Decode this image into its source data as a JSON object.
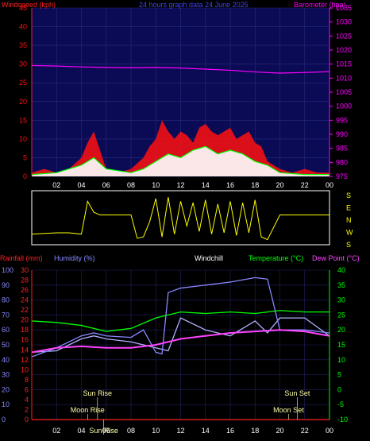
{
  "colors": {
    "background": "#000000",
    "plot_bg": "#0a0a55",
    "wind_gust": "#ff1010",
    "wind_avg": "#ffffff",
    "wind_avg2": "#00ff00",
    "barometer": "#ff00ff",
    "direction": "#ffff00",
    "temperature": "#00ff00",
    "dewpoint": "#ff44ff",
    "humidity": "#8888ff",
    "windchill": "#b0b0ff",
    "rainfall": "#ff2020",
    "title_blue": "#4040ff",
    "axis_white": "#ffffff"
  },
  "chart_data": [
    {
      "type": "line",
      "panel": "wind-barometer",
      "title": "24 hours graph data  24 June 2025",
      "ylabel_left": "Windspeed (kph)",
      "ylabel_right": "Barometer (hpa)",
      "ylim_left": [
        0,
        45
      ],
      "ylim_right": [
        975,
        1035
      ],
      "yticks_left": [
        "0",
        "5",
        "10",
        "15",
        "20",
        "25",
        "30",
        "35",
        "40",
        "45"
      ],
      "yticks_right": [
        "975",
        "980",
        "985",
        "990",
        "995",
        "1000",
        "1005",
        "1010",
        "1015",
        "1020",
        "1025",
        "1030",
        "1035"
      ],
      "xticks": [
        "02",
        "04",
        "06",
        "08",
        "10",
        "12",
        "14",
        "16",
        "18",
        "20",
        "22",
        "00"
      ],
      "xlim": [
        0,
        24
      ],
      "series": [
        {
          "name": "Windspeed",
          "x": [
            0,
            1,
            2,
            3,
            4,
            4.5,
            5,
            5.5,
            6,
            7,
            8,
            9,
            9.5,
            10,
            10.5,
            11,
            11.5,
            12,
            12.5,
            13,
            13.5,
            14,
            14.5,
            15,
            15.5,
            16,
            16.5,
            17,
            17.5,
            18,
            18.5,
            19,
            20,
            21,
            22,
            23,
            24
          ],
          "values": [
            1,
            2,
            1,
            2,
            5,
            9,
            12,
            7,
            2,
            1,
            2,
            5,
            8,
            10,
            15,
            12,
            10,
            12,
            11,
            9,
            13,
            14,
            12,
            11,
            12,
            13,
            10,
            11,
            12,
            9,
            8,
            4,
            2,
            1,
            2,
            1,
            1
          ]
        },
        {
          "name": "Average",
          "x": [
            0,
            2,
            4,
            5,
            6,
            8,
            9,
            10,
            11,
            12,
            13,
            14,
            15,
            16,
            17,
            18,
            19,
            20,
            22,
            24
          ],
          "values": [
            0.5,
            1,
            3,
            5,
            2,
            1,
            2,
            4,
            6,
            5,
            7,
            8,
            6,
            7,
            6,
            4,
            3,
            1,
            0.5,
            0.5
          ]
        },
        {
          "name": "Barometer",
          "x": [
            0,
            2,
            4,
            6,
            8,
            10,
            12,
            14,
            16,
            18,
            20,
            22,
            24
          ],
          "values": [
            1014.5,
            1014.3,
            1014,
            1013.8,
            1013.7,
            1013.8,
            1013.6,
            1013.2,
            1012.8,
            1012.2,
            1011.8,
            1012,
            1012.3
          ]
        }
      ]
    },
    {
      "type": "line",
      "panel": "wind-direction",
      "ylabels": [
        "S",
        "E",
        "N",
        "W",
        "S"
      ],
      "ylim": [
        0,
        360
      ],
      "xlim": [
        0,
        24
      ],
      "series": [
        {
          "name": "Direction",
          "x": [
            0,
            2,
            3,
            4,
            4.5,
            5,
            5.5,
            6,
            8,
            8.5,
            9,
            9.5,
            10,
            10.5,
            11,
            11.5,
            12,
            12.5,
            13,
            13.5,
            14,
            14.5,
            15,
            15.5,
            16,
            16.5,
            17,
            17.5,
            18,
            18.5,
            19,
            20,
            24
          ],
          "values": [
            60,
            70,
            70,
            60,
            300,
            220,
            200,
            200,
            200,
            30,
            40,
            150,
            320,
            40,
            330,
            60,
            300,
            120,
            290,
            80,
            310,
            60,
            280,
            70,
            300,
            50,
            290,
            70,
            310,
            40,
            20,
            200,
            200
          ]
        }
      ]
    },
    {
      "type": "line",
      "panel": "temperature-humidity",
      "labels": [
        "Rainfall (mm)",
        "Humidity (%)",
        "Windchill",
        "Temperature (°C)",
        "Dew Point (°C)"
      ],
      "ylim_humidity": [
        0,
        100
      ],
      "yticks_humidity": [
        "0",
        "10",
        "20",
        "30",
        "40",
        "50",
        "60",
        "70",
        "80",
        "90",
        "100"
      ],
      "ylim_rain": [
        0,
        30
      ],
      "yticks_rain": [
        "0",
        "2",
        "4",
        "6",
        "8",
        "10",
        "12",
        "14",
        "16",
        "18",
        "20",
        "22",
        "24",
        "26",
        "28",
        "30"
      ],
      "ylim_temp": [
        -10,
        40
      ],
      "yticks_temp": [
        "-10",
        "-5",
        "0",
        "5",
        "10",
        "15",
        "20",
        "25",
        "30",
        "35",
        "40"
      ],
      "xticks": [
        "02",
        "04",
        "06",
        "08",
        "10",
        "12",
        "14",
        "16",
        "18",
        "20",
        "22",
        "00"
      ],
      "xlim": [
        0,
        24
      ],
      "annotations": [
        "Sun Rise",
        "Moon Rise",
        "Sun Rise",
        "Sun Set",
        "Moon Set"
      ],
      "series": [
        {
          "name": "Temperature",
          "x": [
            0,
            2,
            4,
            6,
            8,
            10,
            12,
            14,
            16,
            18,
            20,
            22,
            24
          ],
          "values": [
            23,
            22.5,
            21.5,
            19.5,
            20.5,
            24,
            26,
            25.5,
            26,
            25.5,
            26.5,
            26,
            26
          ]
        },
        {
          "name": "Windchill",
          "x": [
            0,
            2,
            4,
            5,
            6,
            7,
            8,
            9,
            10,
            11,
            12,
            14,
            16,
            18,
            19,
            20,
            22,
            24
          ],
          "values": [
            12.5,
            13,
            17,
            18,
            17,
            16.5,
            16,
            15,
            14,
            13,
            24,
            20,
            18,
            23,
            19,
            24,
            24,
            18
          ]
        },
        {
          "name": "Humidity",
          "x": [
            0,
            2,
            4,
            5,
            6,
            8,
            9,
            10,
            10.5,
            11,
            12,
            14,
            16,
            18,
            19,
            20,
            22,
            24
          ],
          "values": [
            42,
            48,
            56,
            58,
            56,
            55,
            60,
            45,
            44,
            85,
            88,
            90,
            92,
            95,
            94,
            60,
            60,
            58
          ]
        },
        {
          "name": "Dew Point",
          "x": [
            0,
            2,
            4,
            6,
            8,
            10,
            12,
            14,
            16,
            18,
            20,
            22,
            24
          ],
          "values": [
            12.5,
            14,
            14.5,
            14,
            14,
            15,
            17,
            18,
            19,
            19.5,
            20,
            19.5,
            18
          ]
        },
        {
          "name": "Rainfall",
          "x": [
            0,
            24
          ],
          "values": [
            0,
            0
          ]
        }
      ]
    }
  ],
  "sunmoon": {
    "sun_rise": "Sun Rise",
    "moon_rise": "Moon Rise",
    "sun_rise2": "Sun Rise",
    "sun_set": "Sun Set",
    "moon_set": "Moon Set"
  }
}
